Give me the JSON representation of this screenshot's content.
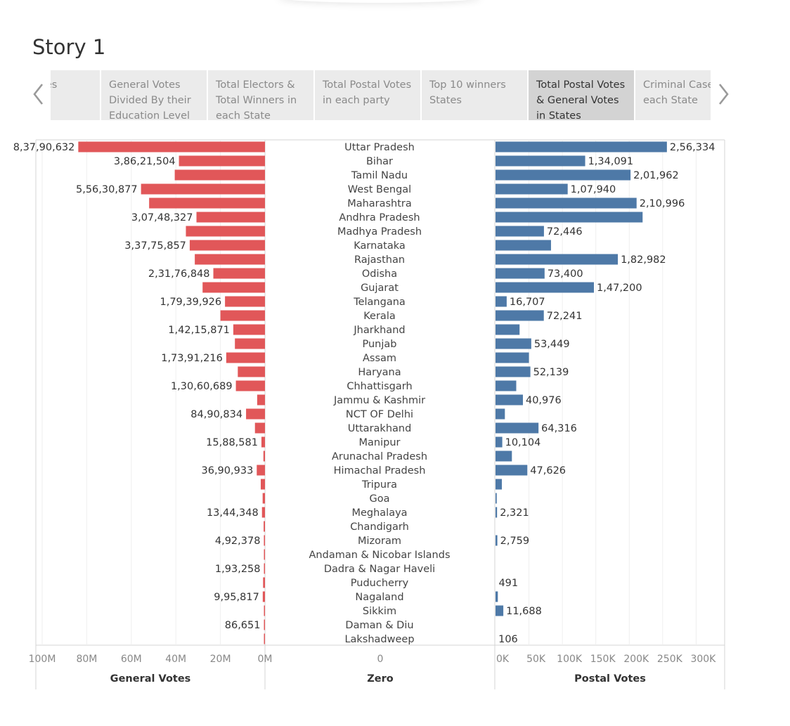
{
  "story": {
    "title": "Story 1",
    "tabs": [
      {
        "label": "Total Votes",
        "active": false
      },
      {
        "label": "General Votes Divided By their Education Level",
        "active": false
      },
      {
        "label": "Total Electors & Total Winners in each State",
        "active": false
      },
      {
        "label": "Total Postal Votes in each party",
        "active": false
      },
      {
        "label": "Top 10 winners States",
        "active": false
      },
      {
        "label": "Total Postal Votes & General Votes in States",
        "active": true
      },
      {
        "label": "Criminal Cases in each State",
        "active": false
      }
    ]
  },
  "chart_data": {
    "type": "bar",
    "layout": "butterfly",
    "categories": [
      "Uttar Pradesh",
      "Bihar",
      "Tamil Nadu",
      "West Bengal",
      "Maharashtra",
      "Andhra Pradesh",
      "Madhya Pradesh",
      "Karnataka",
      "Rajasthan",
      "Odisha",
      "Gujarat",
      "Telangana",
      "Kerala",
      "Jharkhand",
      "Punjab",
      "Assam",
      "Haryana",
      "Chhattisgarh",
      "Jammu & Kashmir",
      "NCT OF Delhi",
      "Uttarakhand",
      "Manipur",
      "Arunachal Pradesh",
      "Himachal Pradesh",
      "Tripura",
      "Goa",
      "Meghalaya",
      "Chandigarh",
      "Mizoram",
      "Andaman & Nicobar Islands",
      "Dadra & Nagar Haveli",
      "Puducherry",
      "Nagaland",
      "Sikkim",
      "Daman & Diu",
      "Lakshadweep"
    ],
    "series": [
      {
        "name": "General Votes",
        "color": "#e15759",
        "values": [
          83790632,
          38621504,
          40500000,
          55630877,
          52000000,
          30748327,
          35500000,
          33775857,
          31500000,
          23176848,
          28000000,
          17939926,
          20000000,
          14215871,
          13500000,
          17391216,
          12200000,
          13060689,
          3500000,
          8490834,
          4500000,
          1588581,
          700000,
          3690933,
          1900000,
          1050000,
          1344348,
          600000,
          492378,
          260000,
          193258,
          850000,
          995817,
          370000,
          86651,
          40000
        ],
        "labels": [
          "8,37,90,632",
          "3,86,21,504",
          "",
          "5,56,30,877",
          "",
          "3,07,48,327",
          "",
          "3,37,75,857",
          "",
          "2,31,76,848",
          "",
          "1,79,39,926",
          "",
          "1,42,15,871",
          "",
          "1,73,91,216",
          "",
          "1,30,60,689",
          "",
          "84,90,834",
          "",
          "15,88,581",
          "",
          "36,90,933",
          "",
          "",
          "13,44,348",
          "",
          "4,92,378",
          "",
          "1,93,258",
          "",
          "9,95,817",
          "",
          "86,651",
          ""
        ]
      },
      {
        "name": "Postal Votes",
        "color": "#4e79a7",
        "values": [
          256334,
          134091,
          201962,
          107940,
          210996,
          220000,
          72446,
          83000,
          182982,
          73400,
          147200,
          16707,
          72241,
          36000,
          53449,
          50000,
          52139,
          31000,
          40976,
          14000,
          64316,
          10104,
          24500,
          47626,
          9500,
          1800,
          2321,
          300,
          2759,
          150,
          100,
          491,
          3500,
          11688,
          200,
          106
        ],
        "labels": [
          "2,56,334",
          "1,34,091",
          "2,01,962",
          "1,07,940",
          "2,10,996",
          "",
          "72,446",
          "",
          "1,82,982",
          "73,400",
          "1,47,200",
          "16,707",
          "72,241",
          "",
          "53,449",
          "",
          "52,139",
          "",
          "40,976",
          "",
          "64,316",
          "10,104",
          "",
          "47,626",
          "",
          "",
          "2,321",
          "",
          "2,759",
          "",
          "",
          "491",
          "",
          "11,688",
          "",
          "106"
        ]
      }
    ],
    "panels": [
      {
        "header": "General Votes",
        "ticks": [
          "100M",
          "80M",
          "60M",
          "40M",
          "20M",
          "0M"
        ],
        "tick_values": [
          100000000,
          80000000,
          60000000,
          40000000,
          20000000,
          0
        ],
        "xlim": [
          0,
          118000000
        ],
        "reversed": true
      },
      {
        "header": "Zero",
        "ticks": [
          "0"
        ]
      },
      {
        "header": "Postal Votes",
        "ticks": [
          "0K",
          "50K",
          "100K",
          "150K",
          "200K",
          "250K",
          "300K"
        ],
        "tick_values": [
          0,
          50000,
          100000,
          150000,
          200000,
          250000,
          300000
        ],
        "xlim": [
          0,
          340000
        ]
      }
    ],
    "grid": true,
    "legend": "none"
  }
}
